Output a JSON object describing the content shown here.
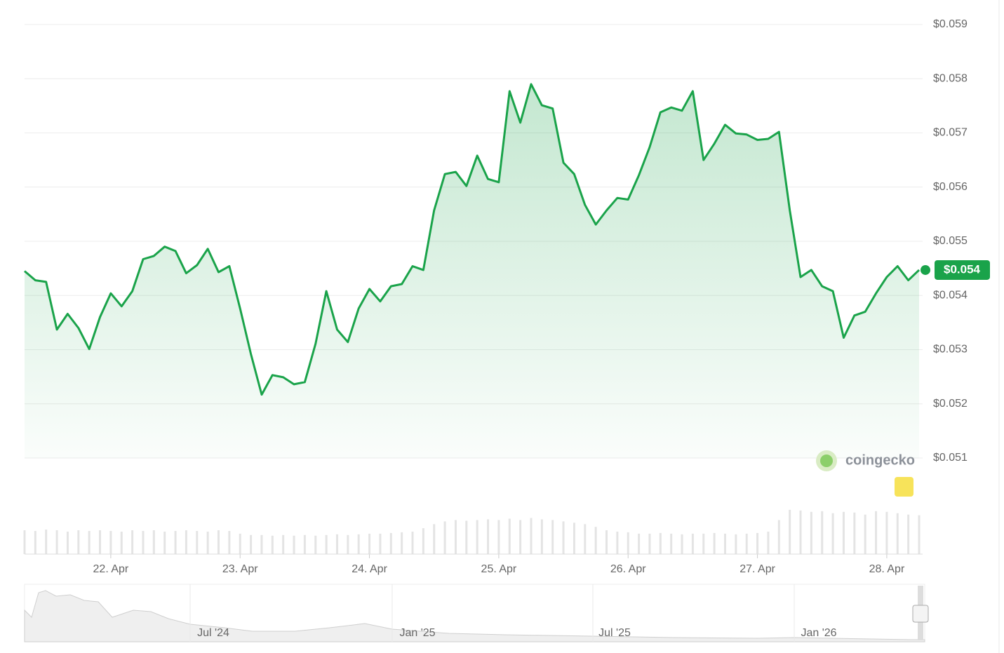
{
  "chart_data": {
    "type": "line",
    "series": [
      {
        "color": "#1aa34a",
        "values": [
          0.05445,
          0.05428,
          0.05425,
          0.05337,
          0.05366,
          0.0534,
          0.05301,
          0.0536,
          0.05404,
          0.0538,
          0.05408,
          0.05467,
          0.05473,
          0.0549,
          0.05482,
          0.05441,
          0.05456,
          0.05486,
          0.05443,
          0.05454,
          0.05376,
          0.05292,
          0.05217,
          0.05253,
          0.05249,
          0.05236,
          0.0524,
          0.05311,
          0.05408,
          0.05337,
          0.05314,
          0.05376,
          0.05412,
          0.05389,
          0.05417,
          0.05421,
          0.05454,
          0.05447,
          0.05557,
          0.05624,
          0.05628,
          0.05602,
          0.05658,
          0.05615,
          0.05609,
          0.05777,
          0.05719,
          0.0579,
          0.05751,
          0.05745,
          0.05645,
          0.05624,
          0.05567,
          0.05531,
          0.05557,
          0.0558,
          0.05577,
          0.05622,
          0.05674,
          0.05738,
          0.05747,
          0.05741,
          0.05777,
          0.0565,
          0.0568,
          0.05715,
          0.05699,
          0.05697,
          0.05687,
          0.05689,
          0.05702,
          0.05557,
          0.05434,
          0.05447,
          0.05417,
          0.05408,
          0.05322,
          0.05363,
          0.0537,
          0.05404,
          0.05434,
          0.05454,
          0.05428,
          0.05447
        ],
        "value_labels": [
          null,
          null,
          null,
          null,
          null,
          null,
          null,
          null,
          null,
          null,
          null,
          null,
          null,
          null,
          null,
          null,
          null,
          null,
          null,
          null,
          null,
          null,
          null,
          null,
          null,
          null,
          null,
          null,
          null,
          null,
          null,
          null,
          null,
          null,
          null,
          null,
          null,
          null,
          null,
          null,
          null,
          null,
          null,
          null,
          null,
          null,
          null,
          null,
          null,
          null,
          null,
          null,
          null,
          null,
          null,
          null,
          null,
          null,
          null,
          null,
          null,
          null,
          null,
          null,
          null,
          null,
          null,
          null,
          null,
          null,
          null,
          null,
          null,
          null,
          null,
          null,
          null,
          null,
          null,
          null,
          null,
          null,
          null,
          "$0.054"
        ]
      }
    ],
    "volume": {
      "color": "#e4e4e4",
      "values": [
        35,
        34,
        36,
        35,
        33,
        35,
        34,
        35,
        34,
        33,
        35,
        34,
        35,
        33,
        34,
        35,
        34,
        33,
        35,
        34,
        30,
        28,
        28,
        27,
        28,
        27,
        28,
        27,
        28,
        29,
        28,
        29,
        30,
        30,
        31,
        32,
        33,
        38,
        44,
        48,
        50,
        49,
        50,
        51,
        50,
        52,
        50,
        53,
        51,
        50,
        48,
        46,
        44,
        40,
        35,
        33,
        32,
        30,
        30,
        31,
        30,
        29,
        30,
        30,
        31,
        30,
        29,
        30,
        31,
        33,
        50,
        65,
        64,
        62,
        63,
        60,
        62,
        61,
        58,
        63,
        62,
        60,
        58,
        57
      ]
    },
    "xlim": [
      0,
      83
    ],
    "xticks": [
      {
        "value": 8,
        "label": "22. Apr"
      },
      {
        "value": 20,
        "label": "23. Apr"
      },
      {
        "value": 32,
        "label": "24. Apr"
      },
      {
        "value": 44,
        "label": "25. Apr"
      },
      {
        "value": 56,
        "label": "26. Apr"
      },
      {
        "value": 68,
        "label": "27. Apr"
      },
      {
        "value": 80,
        "label": "28. Apr"
      }
    ],
    "ylim": [
      0.051,
      0.059
    ],
    "yticks": [
      {
        "value": 0.051,
        "label": "$0.051"
      },
      {
        "value": 0.052,
        "label": "$0.052"
      },
      {
        "value": 0.053,
        "label": "$0.053"
      },
      {
        "value": 0.054,
        "label": "$0.054"
      },
      {
        "value": 0.055,
        "label": "$0.055"
      },
      {
        "value": 0.056,
        "label": "$0.056"
      },
      {
        "value": 0.057,
        "label": "$0.057"
      },
      {
        "value": 0.058,
        "label": "$0.058"
      },
      {
        "value": 0.059,
        "label": "$0.059"
      }
    ],
    "grid": true,
    "watermark": "coingecko",
    "navigator_labels": [
      "Jul '24",
      "Jan '25",
      "Jul '25",
      "Jan '26"
    ]
  }
}
